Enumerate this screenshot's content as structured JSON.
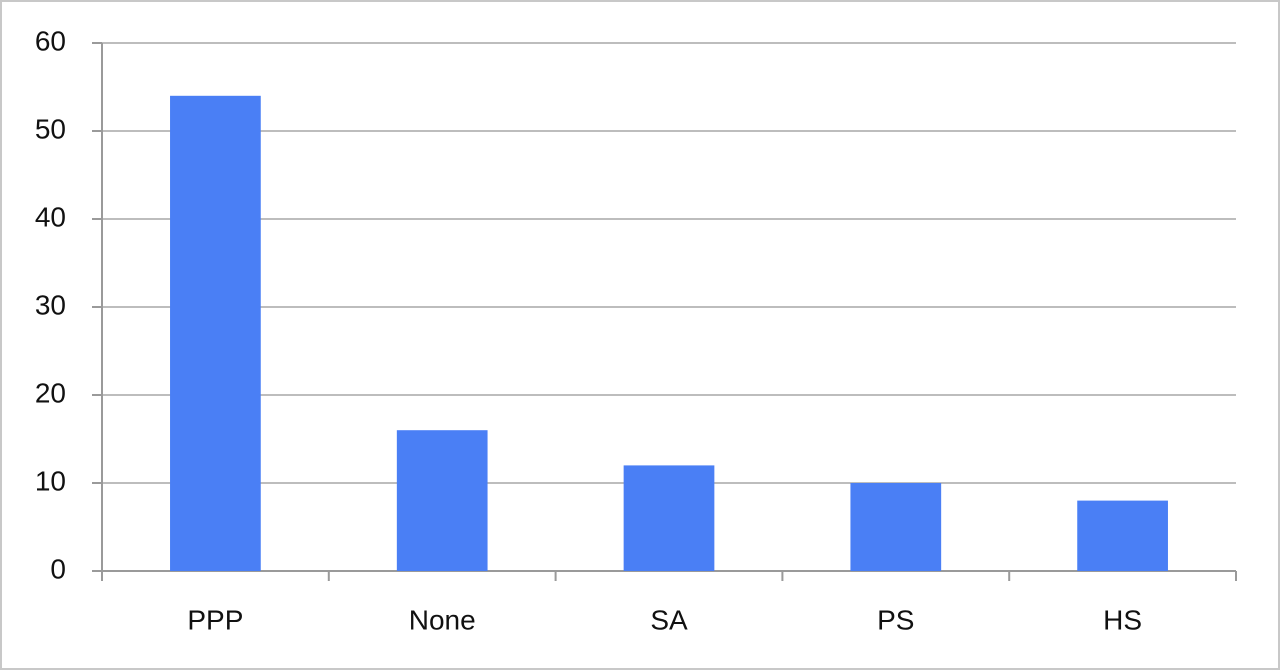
{
  "chart_data": {
    "type": "bar",
    "categories": [
      "PPP",
      "None",
      "SA",
      "PS",
      "HS"
    ],
    "values": [
      54,
      16,
      12,
      10,
      8
    ],
    "color": "#4a7ff5",
    "ylim": [
      0,
      60
    ],
    "yticks": [
      0,
      10,
      20,
      30,
      40,
      50,
      60
    ],
    "grid": true
  }
}
